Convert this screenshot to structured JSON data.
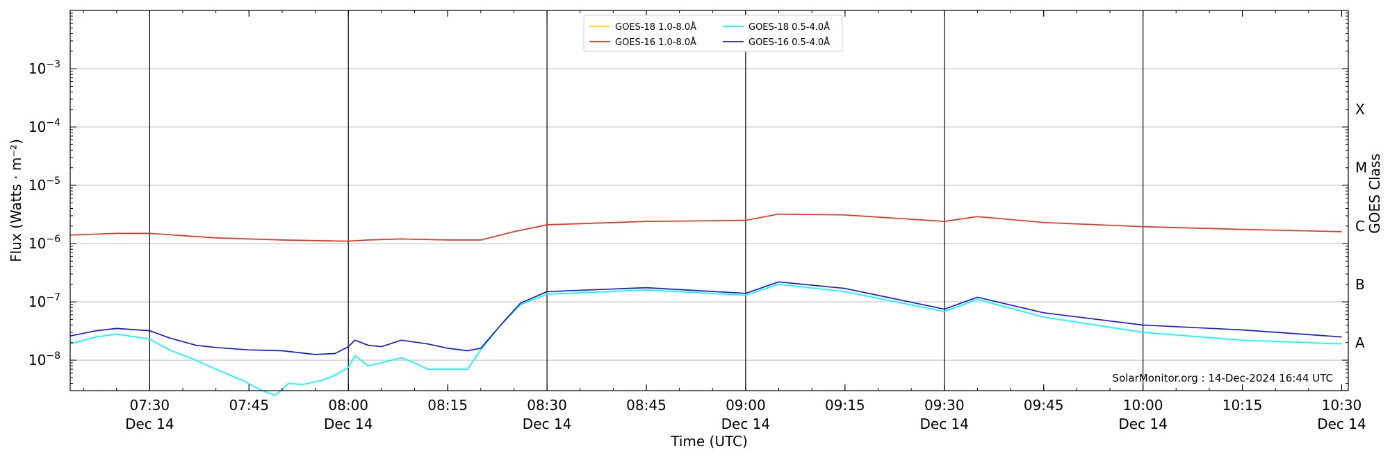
{
  "chart_data": {
    "type": "line",
    "xlabel": "Time (UTC)",
    "ylabel": "Flux (Watts · m⁻²)",
    "right_label": "GOES Class",
    "annotation": "SolarMonitor.org : 14-Dec-2024 16:44 UTC",
    "x_range": [
      "07:18",
      "10:31"
    ],
    "y_range": [
      3e-09,
      0.01
    ],
    "y_scale": "log",
    "y_ticks": [
      {
        "value": 1e-08,
        "exp": "−8"
      },
      {
        "value": 1e-07,
        "exp": "−7"
      },
      {
        "value": 1e-06,
        "exp": "−6"
      },
      {
        "value": 1e-05,
        "exp": "−5"
      },
      {
        "value": 0.0001,
        "exp": "−4"
      },
      {
        "value": 0.001,
        "exp": "−3"
      }
    ],
    "x_ticks": [
      {
        "time": "07:30",
        "line1": "07:30",
        "line2": "Dec 14"
      },
      {
        "time": "07:45",
        "line1": "07:45",
        "line2": ""
      },
      {
        "time": "08:00",
        "line1": "08:00",
        "line2": "Dec 14"
      },
      {
        "time": "08:15",
        "line1": "08:15",
        "line2": ""
      },
      {
        "time": "08:30",
        "line1": "08:30",
        "line2": "Dec 14"
      },
      {
        "time": "08:45",
        "line1": "08:45",
        "line2": ""
      },
      {
        "time": "09:00",
        "line1": "09:00",
        "line2": "Dec 14"
      },
      {
        "time": "09:15",
        "line1": "09:15",
        "line2": ""
      },
      {
        "time": "09:30",
        "line1": "09:30",
        "line2": "Dec 14"
      },
      {
        "time": "09:45",
        "line1": "09:45",
        "line2": ""
      },
      {
        "time": "10:00",
        "line1": "10:00",
        "line2": "Dec 14"
      },
      {
        "time": "10:15",
        "line1": "10:15",
        "line2": ""
      },
      {
        "time": "10:30",
        "line1": "10:30",
        "line2": "Dec 14"
      }
    ],
    "vertical_lines": [
      "07:30",
      "08:00",
      "08:30",
      "09:00",
      "09:30",
      "10:00"
    ],
    "goes_classes": [
      {
        "label": "A",
        "value": 2e-08
      },
      {
        "label": "B",
        "value": 2e-07
      },
      {
        "label": "C",
        "value": 2e-06
      },
      {
        "label": "M",
        "value": 2e-05
      },
      {
        "label": "X",
        "value": 0.0002
      }
    ],
    "grid": "horizontal at decades",
    "legend_position": "top-center",
    "series": [
      {
        "name": "GOES-18 1.0-8.0Å",
        "color": "#ffd700",
        "x": [],
        "y": []
      },
      {
        "name": "GOES-16 1.0-8.0Å",
        "color": "#e8321a",
        "x": [
          "07:18",
          "07:25",
          "07:30",
          "07:40",
          "07:50",
          "08:00",
          "08:03",
          "08:08",
          "08:15",
          "08:20",
          "08:25",
          "08:30",
          "08:45",
          "09:00",
          "09:05",
          "09:15",
          "09:30",
          "09:35",
          "09:45",
          "10:00",
          "10:15",
          "10:30"
        ],
        "y": [
          1.4e-06,
          1.5e-06,
          1.5e-06,
          1.25e-06,
          1.15e-06,
          1.1e-06,
          1.15e-06,
          1.2e-06,
          1.15e-06,
          1.15e-06,
          1.6e-06,
          2.1e-06,
          2.4e-06,
          2.5e-06,
          3.2e-06,
          3.1e-06,
          2.4e-06,
          2.9e-06,
          2.3e-06,
          1.95e-06,
          1.75e-06,
          1.6e-06
        ]
      },
      {
        "name": "GOES-18 0.5-4.0Å",
        "color": "#00ffff",
        "x": [
          "07:18",
          "07:22",
          "07:25",
          "07:30",
          "07:33",
          "07:37",
          "07:40",
          "07:44",
          "07:47",
          "07:49",
          "07:51",
          "07:53",
          "07:56",
          "07:58",
          "08:00",
          "08:01",
          "08:03",
          "08:05",
          "08:08",
          "08:10",
          "08:12",
          "08:15",
          "08:18",
          "08:20",
          "08:23",
          "08:26",
          "08:30",
          "08:45",
          "09:00",
          "09:05",
          "09:15",
          "09:30",
          "09:35",
          "09:45",
          "10:00",
          "10:15",
          "10:30"
        ],
        "y": [
          1.9e-08,
          2.5e-08,
          2.8e-08,
          2.3e-08,
          1.5e-08,
          1e-08,
          7e-09,
          4.5e-09,
          3e-09,
          2.5e-09,
          4e-09,
          3.8e-09,
          4.5e-09,
          5.5e-09,
          7.5e-09,
          1.2e-08,
          8e-09,
          9e-09,
          1.1e-08,
          9e-09,
          7e-09,
          7e-09,
          7e-09,
          1.5e-08,
          4e-08,
          9e-08,
          1.35e-07,
          1.6e-07,
          1.3e-07,
          2e-07,
          1.5e-07,
          6.8e-08,
          1.1e-07,
          5.5e-08,
          3e-08,
          2.2e-08,
          1.9e-08
        ]
      },
      {
        "name": "GOES-16 0.5-4.0Å",
        "color": "#1a1adb",
        "x": [
          "07:18",
          "07:22",
          "07:25",
          "07:30",
          "07:33",
          "07:37",
          "07:40",
          "07:45",
          "07:50",
          "07:55",
          "07:58",
          "08:00",
          "08:01",
          "08:03",
          "08:05",
          "08:08",
          "08:12",
          "08:15",
          "08:18",
          "08:20",
          "08:23",
          "08:26",
          "08:30",
          "08:45",
          "09:00",
          "09:05",
          "09:15",
          "09:30",
          "09:35",
          "09:45",
          "10:00",
          "10:15",
          "10:30"
        ],
        "y": [
          2.6e-08,
          3.2e-08,
          3.5e-08,
          3.2e-08,
          2.4e-08,
          1.8e-08,
          1.65e-08,
          1.5e-08,
          1.45e-08,
          1.25e-08,
          1.3e-08,
          1.7e-08,
          2.2e-08,
          1.8e-08,
          1.7e-08,
          2.2e-08,
          1.9e-08,
          1.6e-08,
          1.45e-08,
          1.6e-08,
          4e-08,
          9.5e-08,
          1.5e-07,
          1.75e-07,
          1.4e-07,
          2.2e-07,
          1.7e-07,
          7.5e-08,
          1.2e-07,
          6.5e-08,
          4e-08,
          3.3e-08,
          2.5e-08
        ]
      }
    ]
  }
}
